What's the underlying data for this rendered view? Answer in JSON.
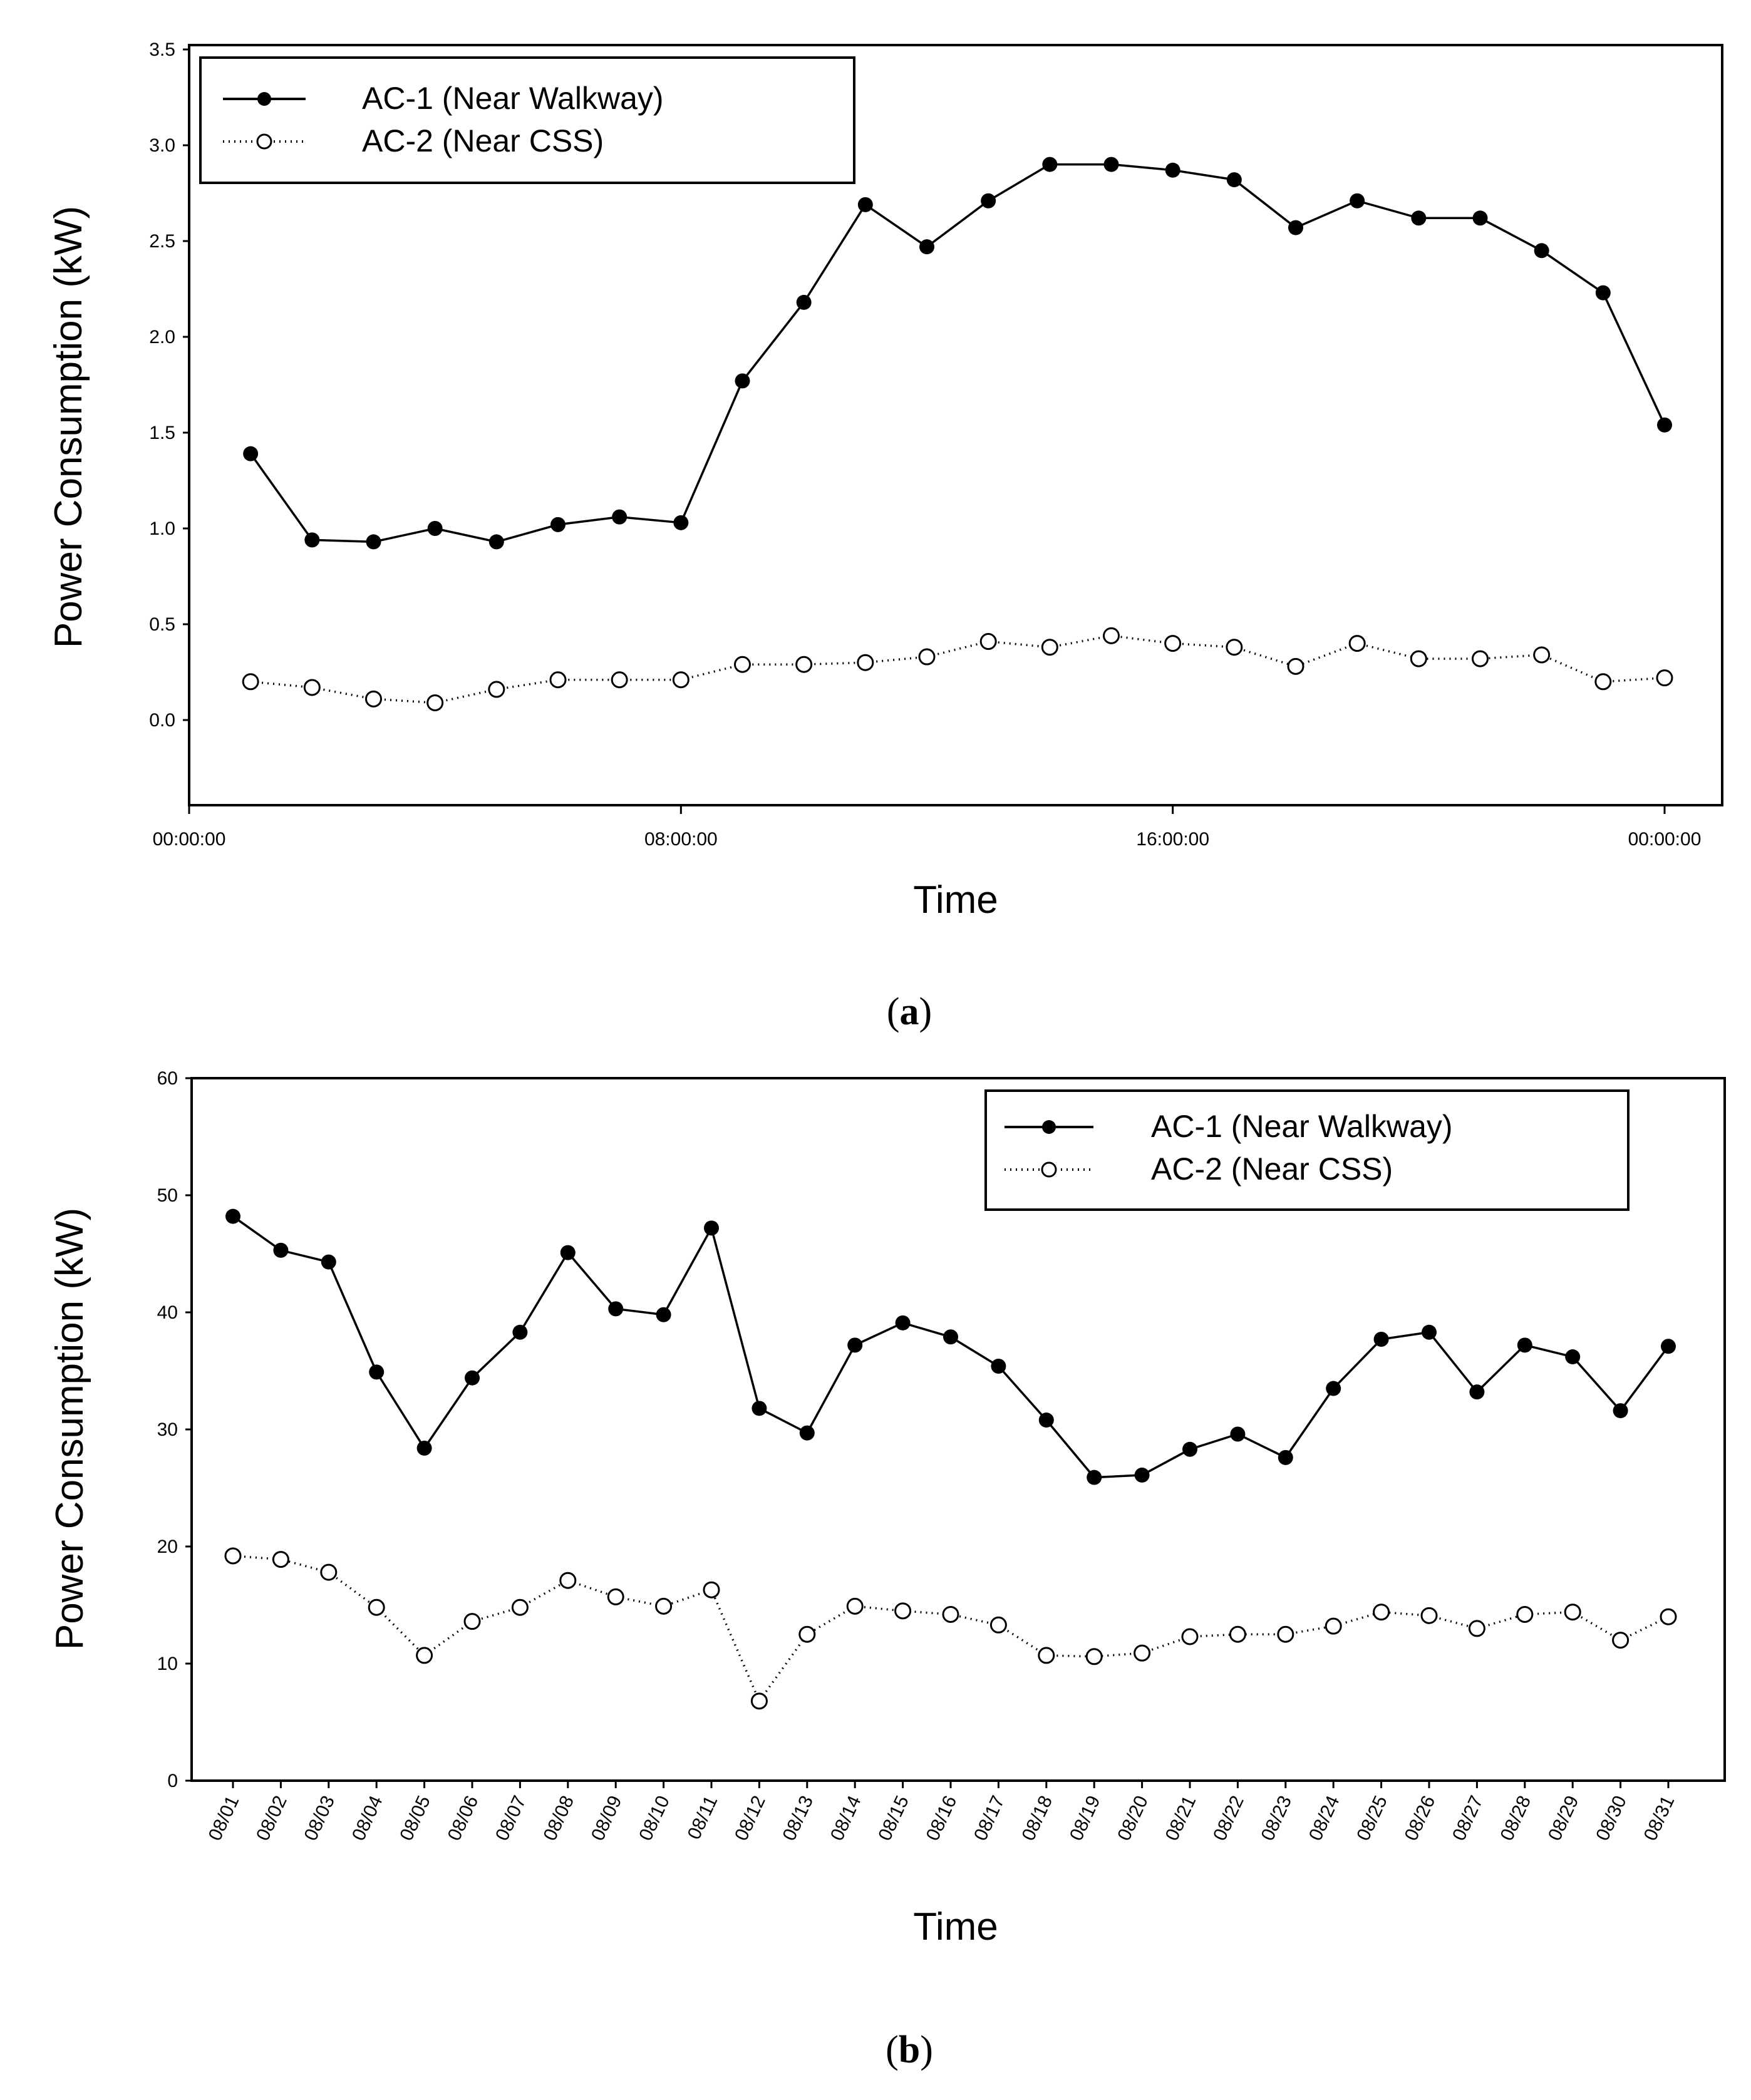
{
  "chart_data": [
    {
      "id": "a",
      "type": "line",
      "caption_letter": "a",
      "xlabel": "Time",
      "ylabel": "Power Consumption (kW)",
      "ylim": [
        -0.45,
        3.5
      ],
      "yticks": [
        "0.0",
        "0.5",
        "1.0",
        "1.5",
        "2.0",
        "2.5",
        "3.0",
        "3.5"
      ],
      "xlim_hours": [
        0,
        24
      ],
      "xticks": [
        {
          "hour": 0,
          "label": "00:00:00"
        },
        {
          "hour": 8,
          "label": "08:00:00"
        },
        {
          "hour": 16,
          "label": "16:00:00"
        },
        {
          "hour": 24,
          "label": "00:00:00"
        }
      ],
      "x": [
        1,
        2,
        3,
        4,
        5,
        6,
        7,
        8,
        9,
        10,
        11,
        12,
        13,
        14,
        15,
        16,
        17,
        18,
        19,
        20,
        21,
        22,
        23,
        24
      ],
      "legend_position": "top-left",
      "series": [
        {
          "name": "AC-1 (Near Walkway)",
          "style": "solid-filled",
          "values": [
            1.39,
            0.94,
            0.93,
            1.0,
            0.93,
            1.02,
            1.06,
            1.03,
            1.77,
            2.18,
            2.69,
            2.47,
            2.71,
            2.9,
            2.9,
            2.87,
            2.82,
            2.57,
            2.71,
            2.62,
            2.62,
            2.45,
            2.23,
            1.54
          ]
        },
        {
          "name": "AC-2 (Near CSS)",
          "style": "dotted-open",
          "values": [
            0.2,
            0.17,
            0.11,
            0.09,
            0.16,
            0.21,
            0.21,
            0.21,
            0.29,
            0.29,
            0.3,
            0.33,
            0.41,
            0.38,
            0.44,
            0.4,
            0.38,
            0.28,
            0.4,
            0.32,
            0.32,
            0.34,
            0.2,
            0.22
          ]
        }
      ]
    },
    {
      "id": "b",
      "type": "line",
      "caption_letter": "b",
      "xlabel": "Time",
      "ylabel": "Power Consumption (kW)",
      "ylim": [
        0,
        60
      ],
      "yticks": [
        "0",
        "10",
        "20",
        "30",
        "40",
        "50",
        "60"
      ],
      "categories": [
        "08/01",
        "08/02",
        "08/03",
        "08/04",
        "08/05",
        "08/06",
        "08/07",
        "08/08",
        "08/09",
        "08/10",
        "08/11",
        "08/12",
        "08/13",
        "08/14",
        "08/15",
        "08/16",
        "08/17",
        "08/18",
        "08/19",
        "08/20",
        "08/21",
        "08/22",
        "08/23",
        "08/24",
        "08/25",
        "08/26",
        "08/27",
        "08/28",
        "08/29",
        "08/30",
        "08/31"
      ],
      "legend_position": "top-right",
      "series": [
        {
          "name": "AC-1 (Near Walkway)",
          "style": "solid-filled",
          "values": [
            48.2,
            45.3,
            44.3,
            34.9,
            28.4,
            34.4,
            38.3,
            45.1,
            40.3,
            39.8,
            47.2,
            31.8,
            29.7,
            37.2,
            39.1,
            37.9,
            35.4,
            30.8,
            25.9,
            26.1,
            28.3,
            29.6,
            27.6,
            33.5,
            37.7,
            38.3,
            33.2,
            37.2,
            36.2,
            31.6,
            37.1
          ]
        },
        {
          "name": "AC-2 (Near CSS)",
          "style": "dotted-open",
          "values": [
            19.2,
            18.9,
            17.8,
            14.8,
            10.7,
            13.6,
            14.8,
            17.1,
            15.7,
            14.9,
            16.3,
            6.8,
            12.5,
            14.9,
            14.5,
            14.2,
            13.3,
            10.7,
            10.6,
            10.9,
            12.3,
            12.5,
            12.5,
            13.2,
            14.4,
            14.1,
            13.0,
            14.2,
            14.4,
            12.0,
            14.0
          ]
        }
      ]
    }
  ]
}
